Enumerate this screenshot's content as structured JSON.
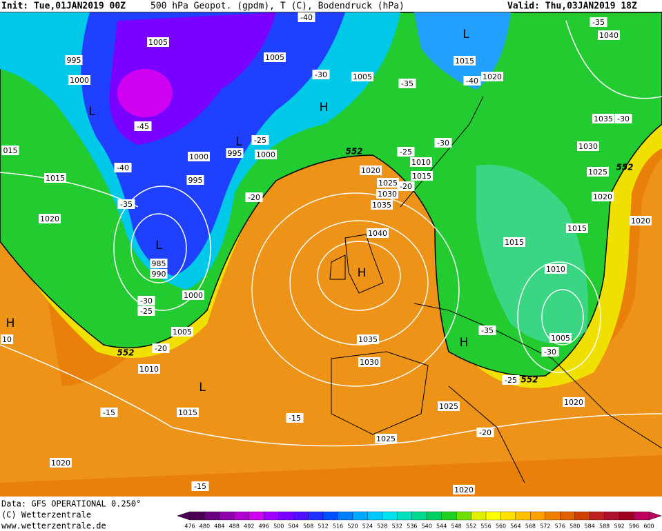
{
  "header": {
    "init": "Init: Tue,01JAN2019 00Z",
    "title": "500 hPa Geopot. (gpdm), T (C), Bodendruck (hPa)",
    "valid": "Valid: Thu,03JAN2019 18Z"
  },
  "map": {
    "isobar_labels": [
      "1005",
      "995",
      "1000",
      "-45",
      "-40",
      "1015",
      "-35",
      "1020",
      "985",
      "990",
      "1000",
      "-30",
      "-25",
      "1005",
      "-20",
      "1010",
      "1015",
      "-15",
      "1020",
      "-15",
      "1005",
      "-30",
      "1005",
      "-35",
      "-40",
      "-25",
      "995",
      "1000",
      "1000",
      "995",
      "-20",
      "1020",
      "1025",
      "1030",
      "1035",
      "1040",
      "-20",
      "1010",
      "1015",
      "-25",
      "-30",
      "1035",
      "1030",
      "-15",
      "1025",
      "1025",
      "-20",
      "1020",
      "1015",
      "1020",
      "-40",
      "1040",
      "-35",
      "1035",
      "-30",
      "1030",
      "1025",
      "1020",
      "1015",
      "1020",
      "1015",
      "1010",
      "1005",
      "-30",
      "-35",
      "-25",
      "1020",
      "015",
      "10"
    ],
    "contour_labels": [
      "552",
      "552",
      "552",
      "552"
    ],
    "pressure_centers": [
      "L",
      "L",
      "L",
      "L",
      "L",
      "H",
      "H",
      "H",
      "H"
    ]
  },
  "footer": {
    "source": "Data: GFS OPERATIONAL 0.250°",
    "copyright": "(C) Wetterzentrale",
    "url": "www.wetterzentrale.de"
  },
  "colorbar": {
    "labels": [
      476,
      480,
      484,
      488,
      492,
      496,
      500,
      504,
      508,
      512,
      516,
      520,
      524,
      528,
      532,
      536,
      540,
      544,
      548,
      552,
      556,
      560,
      564,
      568,
      572,
      576,
      580,
      584,
      588,
      592,
      596,
      600
    ],
    "colors": [
      "#4b0055",
      "#6a0080",
      "#8b00a8",
      "#b000d0",
      "#d000f0",
      "#a000ff",
      "#7a00ff",
      "#5010ff",
      "#2030ff",
      "#0050ff",
      "#0080ff",
      "#00a8ff",
      "#00c8ff",
      "#00e0f0",
      "#00e0c0",
      "#00d890",
      "#00d060",
      "#20d020",
      "#70e000",
      "#e0f000",
      "#ffff00",
      "#ffe000",
      "#ffc000",
      "#ffa000",
      "#f08000",
      "#e06000",
      "#d04000",
      "#c02020",
      "#b01030",
      "#a00020",
      "#c00060"
    ]
  }
}
